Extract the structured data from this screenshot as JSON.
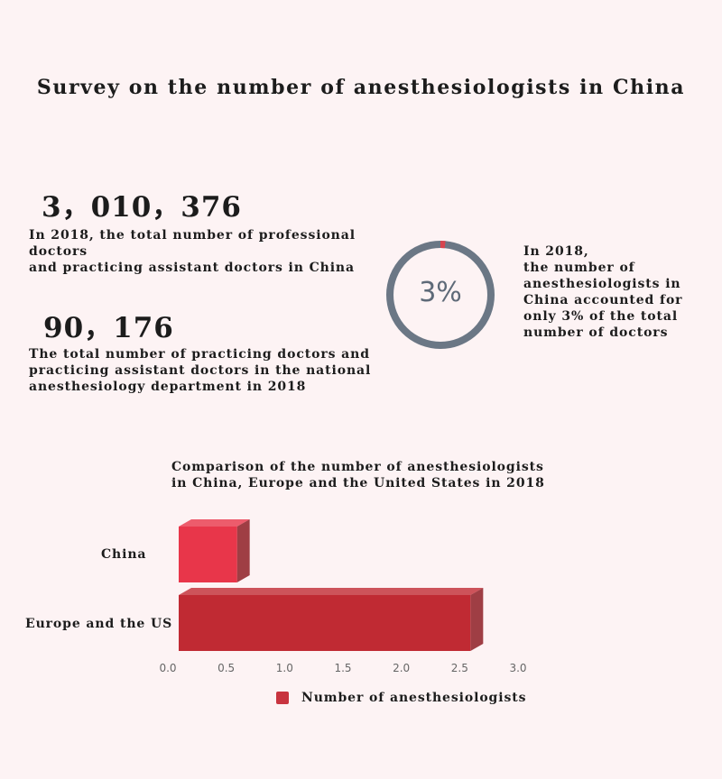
{
  "title": "Survey on the number of anesthesiologists in China",
  "stats": {
    "total_doctors_number": "3，010，376",
    "total_doctors_text_line1": "In 2018, the total number of professional doctors",
    "total_doctors_text_line2": "and practicing assistant doctors in China",
    "anesth_number": "90，176",
    "anesth_text_line1": "The total number of practicing doctors and",
    "anesth_text_line2": "practicing assistant doctors in the national",
    "anesth_text_line3": "anesthesiology department in 2018"
  },
  "ring": {
    "label": "3%",
    "value_percent": 3,
    "track_color": "#6b7785",
    "fill_color": "#d6454f",
    "text_line1": "In 2018,",
    "text_line2": "the number of",
    "text_line3": "anesthesiologists in",
    "text_line4": "China accounted for",
    "text_line5": "only 3% of the total",
    "text_line6": "number of doctors"
  },
  "chart_data": {
    "type": "bar",
    "orientation": "horizontal",
    "title_line1": "Comparison of the number of anesthesiologists",
    "title_line2": "in China, Europe and the United States in 2018",
    "categories": [
      "China",
      "Europe and the US"
    ],
    "series": [
      {
        "name": "Number of anesthesiologists",
        "values": [
          0.5,
          2.5
        ]
      }
    ],
    "bar_colors": [
      "#e8364a",
      "#c02a33"
    ],
    "xlim": [
      0,
      3
    ],
    "xticks": [
      "0.0",
      "0.5",
      "1.0",
      "1.5",
      "2.0",
      "2.5",
      "3.0"
    ],
    "legend_position": "bottom"
  }
}
